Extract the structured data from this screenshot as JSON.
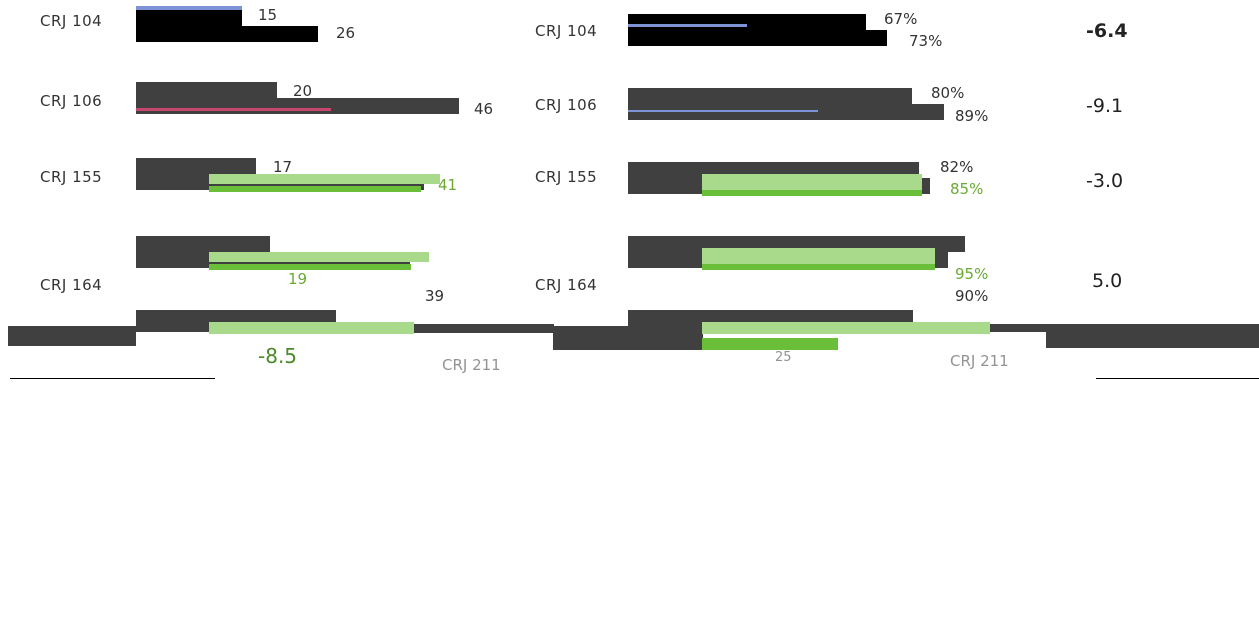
{
  "colors": {
    "dark": "#404040",
    "black": "#000000",
    "light_green": "#a9d98a",
    "green": "#6abf3a",
    "blue": "#7c93d6",
    "pink": "#c8476e",
    "gray": "#6a6a6a"
  },
  "chart_data": [
    {
      "type": "bar",
      "categories": [
        "CRJ 104",
        "CRJ 106",
        "CRJ 155",
        "CRJ 164"
      ],
      "series": [
        {
          "values": [
            15,
            20,
            17,
            19
          ]
        },
        {
          "values": [
            26,
            46,
            41,
            39
          ]
        }
      ],
      "value_labels": [
        [
          "15",
          "26"
        ],
        [
          "20",
          "46"
        ],
        [
          "17",
          "41"
        ],
        [
          "19",
          "39"
        ]
      ],
      "xlim": [
        0,
        60
      ]
    },
    {
      "type": "bar",
      "categories": [
        "CRJ 104",
        "CRJ 106",
        "CRJ 155",
        "CRJ 164"
      ],
      "series": [
        {
          "values": [
            67,
            80,
            82,
            95
          ]
        },
        {
          "values": [
            73,
            89,
            85,
            90
          ]
        }
      ],
      "value_labels": [
        [
          "67%",
          "73%"
        ],
        [
          "80%",
          "89%"
        ],
        [
          "82%",
          "85%"
        ],
        [
          "95%",
          "90%"
        ]
      ],
      "xlim": [
        0,
        100
      ]
    }
  ],
  "rows": [
    {
      "label": "CRJ 104",
      "delta": "-6.4"
    },
    {
      "label": "CRJ 106",
      "delta": "-9.1"
    },
    {
      "label": "CRJ 155",
      "delta": "-3.0"
    },
    {
      "label": "CRJ 164",
      "delta": "5.0"
    }
  ],
  "bottom": {
    "delta": "-8.5",
    "label_left": "CRJ 211",
    "label_right": "CRJ 211",
    "value_mid": "25"
  }
}
